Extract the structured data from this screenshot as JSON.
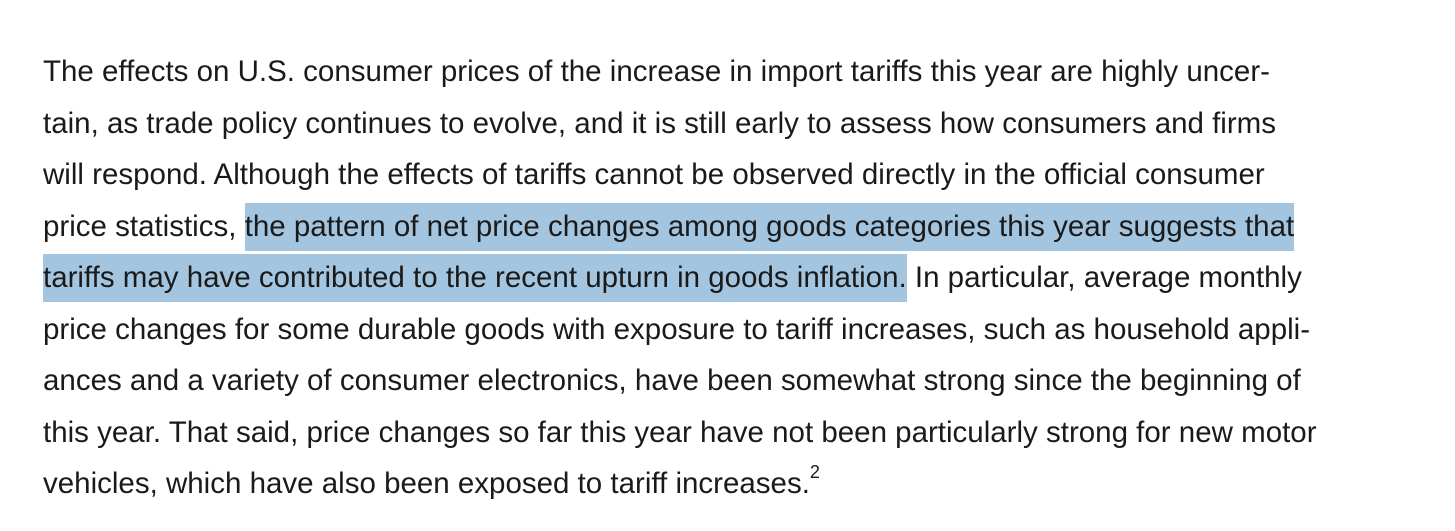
{
  "paragraph": {
    "lines": [
      "The effects on U.S. consumer prices of the increase in import tariffs this year are highly uncer-",
      "tain, as trade policy continues to evolve, and it is still early to assess how consumers and firms",
      "will respond. Although the effects of tariffs cannot be observed directly in the official consumer",
      "price statistics, ",
      "the pattern of net price changes among goods categories this year suggests that",
      "tariffs may have contributed to the recent upturn in goods inflation.",
      " In particular, average monthly",
      "price changes for some durable goods with exposure to tariff increases, such as household appli-",
      "ances and a variety of consumer electronics, have been somewhat strong since the beginning of",
      "this year. That said, price changes so far this year have not been particularly strong for new motor",
      "vehicles, which have also been exposed to tariff increases."
    ],
    "footnote_ref": "2",
    "highlight_color": "#a3c5e0"
  }
}
